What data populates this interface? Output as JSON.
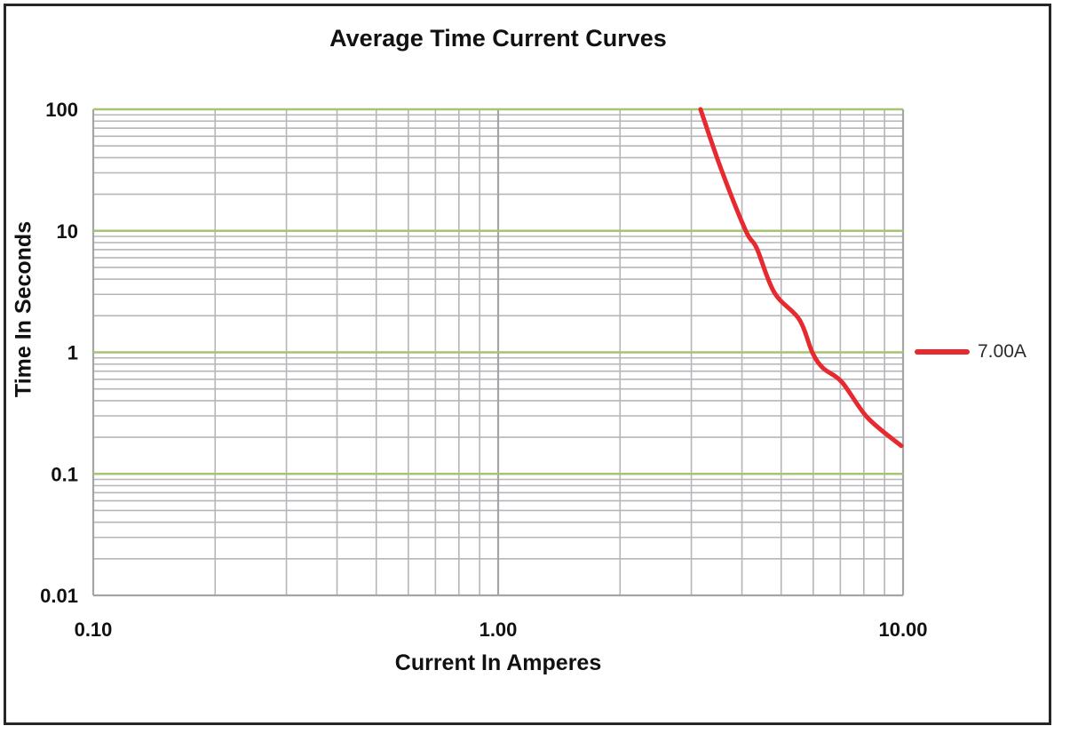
{
  "chart_data": {
    "type": "line",
    "title": "Average Time Current Curves",
    "xlabel": "Current In Amperes",
    "ylabel": "Time In Seconds",
    "x_scale": "log",
    "y_scale": "log",
    "xlim": [
      0.1,
      10
    ],
    "ylim": [
      0.01,
      100
    ],
    "x_ticks": [
      {
        "value": 0.1,
        "label": "0.10"
      },
      {
        "value": 1,
        "label": "1.00"
      },
      {
        "value": 10,
        "label": "10.00"
      }
    ],
    "y_ticks": [
      {
        "value": 100,
        "label": "100"
      },
      {
        "value": 10,
        "label": "10"
      },
      {
        "value": 1,
        "label": "1"
      },
      {
        "value": 0.1,
        "label": "0.1"
      },
      {
        "value": 0.01,
        "label": "0.01"
      }
    ],
    "grid": {
      "major_horizontal_color": "#a6c472",
      "minor_line_color": "#b6b6ba",
      "vertical_line_color": "#a5a5a9",
      "border_color": "#a5a5a9",
      "grid_on": true
    },
    "legend_position": "right-middle",
    "series": [
      {
        "name": "7.00A",
        "color": "#e62a30",
        "points": [
          [
            3.16,
            100
          ],
          [
            3.55,
            32.5
          ],
          [
            4.09,
            10
          ],
          [
            4.35,
            7.2
          ],
          [
            4.81,
            3.1
          ],
          [
            5.54,
            1.87
          ],
          [
            5.97,
            1.0
          ],
          [
            6.35,
            0.74
          ],
          [
            7.06,
            0.57
          ],
          [
            8.17,
            0.29
          ],
          [
            9.9,
            0.17
          ]
        ]
      }
    ],
    "tick_label_color": "#111111"
  }
}
